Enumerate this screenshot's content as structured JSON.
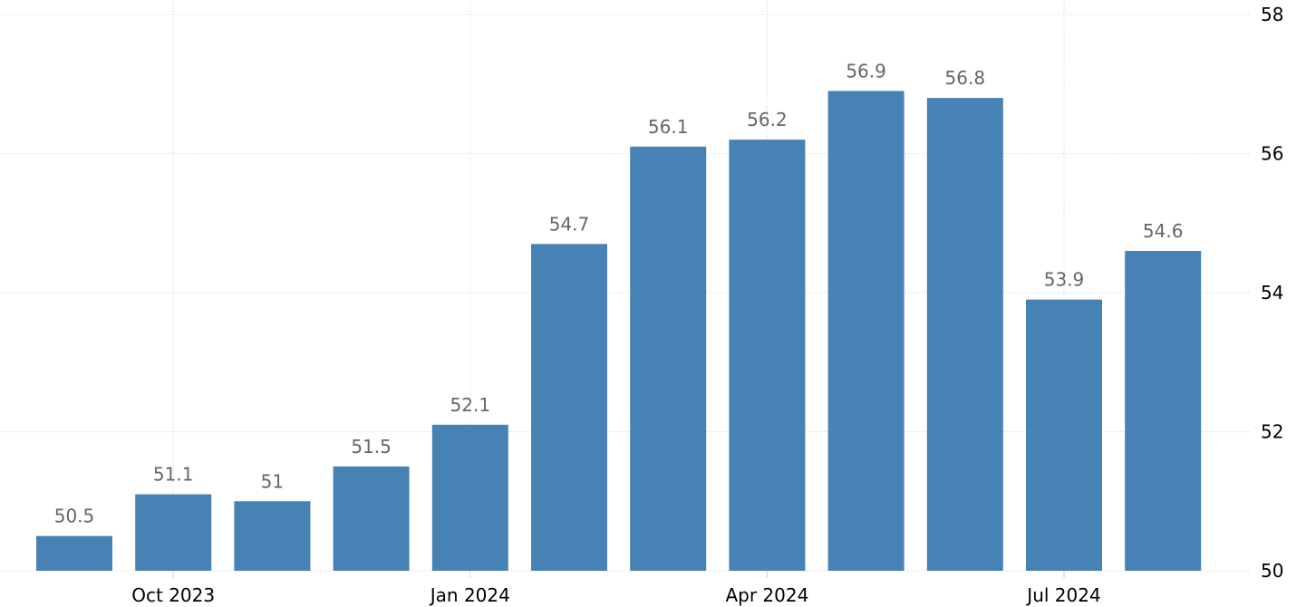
{
  "chart_data": {
    "type": "bar",
    "categories": [
      "Sep 2023",
      "Oct 2023",
      "Nov 2023",
      "Dec 2023",
      "Jan 2024",
      "Feb 2024",
      "Mar 2024",
      "Apr 2024",
      "May 2024",
      "Jun 2024",
      "Jul 2024",
      "Aug 2024"
    ],
    "values": [
      50.5,
      51.1,
      51,
      51.5,
      52.1,
      54.7,
      56.1,
      56.2,
      56.9,
      56.8,
      53.9,
      54.6
    ],
    "data_labels": [
      "50.5",
      "51.1",
      "51",
      "51.5",
      "52.1",
      "54.7",
      "56.1",
      "56.2",
      "56.9",
      "56.8",
      "53.9",
      "54.6"
    ],
    "x_tick_labels": [
      {
        "category": "Oct 2023",
        "label": "Oct 2023"
      },
      {
        "category": "Jan 2024",
        "label": "Jan 2024"
      },
      {
        "category": "Apr 2024",
        "label": "Apr 2024"
      },
      {
        "category": "Jul 2024",
        "label": "Jul 2024"
      }
    ],
    "y_ticks": [
      50,
      52,
      54,
      56,
      58
    ],
    "y_tick_labels": [
      "50",
      "52",
      "54",
      "56",
      "58"
    ],
    "ylim": [
      50,
      58
    ],
    "y_axis_side": "right",
    "grid": true,
    "title": "",
    "xlabel": "",
    "ylabel": "",
    "colors": {
      "bar": "#4682b4",
      "data_label": "#666666",
      "grid": "#d2d2d2",
      "tick_text": "#000000"
    }
  }
}
